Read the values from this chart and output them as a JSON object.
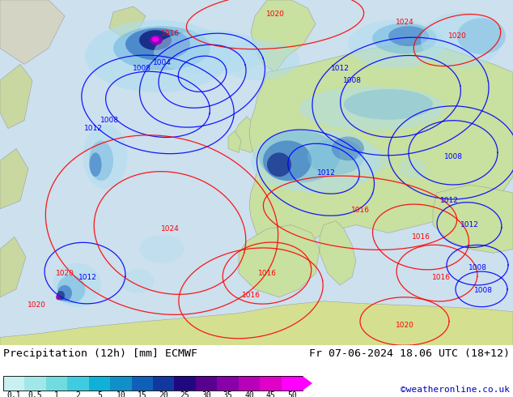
{
  "title_left": "Precipitation (12h) [mm] ECMWF",
  "title_right": "Fr 07-06-2024 18.06 UTC (18+12)",
  "credit": "©weatheronline.co.uk",
  "colorbar_values": [
    0.1,
    0.5,
    1,
    2,
    5,
    10,
    15,
    20,
    25,
    30,
    35,
    40,
    45,
    50
  ],
  "colorbar_colors": [
    "#c8f0f0",
    "#a0e8e8",
    "#70dce0",
    "#40cce0",
    "#10b0d8",
    "#1090c8",
    "#1060b8",
    "#1038a0",
    "#200880",
    "#580090",
    "#8800a8",
    "#b800b8",
    "#e000c8",
    "#ff00ff"
  ],
  "background_color": "#ffffff",
  "ocean_color": "#cce0ee",
  "land_europe_color": "#c8e0a0",
  "land_africa_color": "#d8e098",
  "land_scandinavia_color": "#c0d890",
  "land_greenland_color": "#d8d8c8",
  "precip_light_color": "#b0ddf0",
  "precip_med_color": "#70b8e0",
  "precip_heavy_color": "#3070c0",
  "precip_vheavy_color": "#102080",
  "precip_intense_color": "#cc00cc",
  "title_fontsize": 9.5,
  "credit_fontsize": 8,
  "credit_color": "#0000bb",
  "title_color": "#000000",
  "colorbar_label_fontsize": 7
}
